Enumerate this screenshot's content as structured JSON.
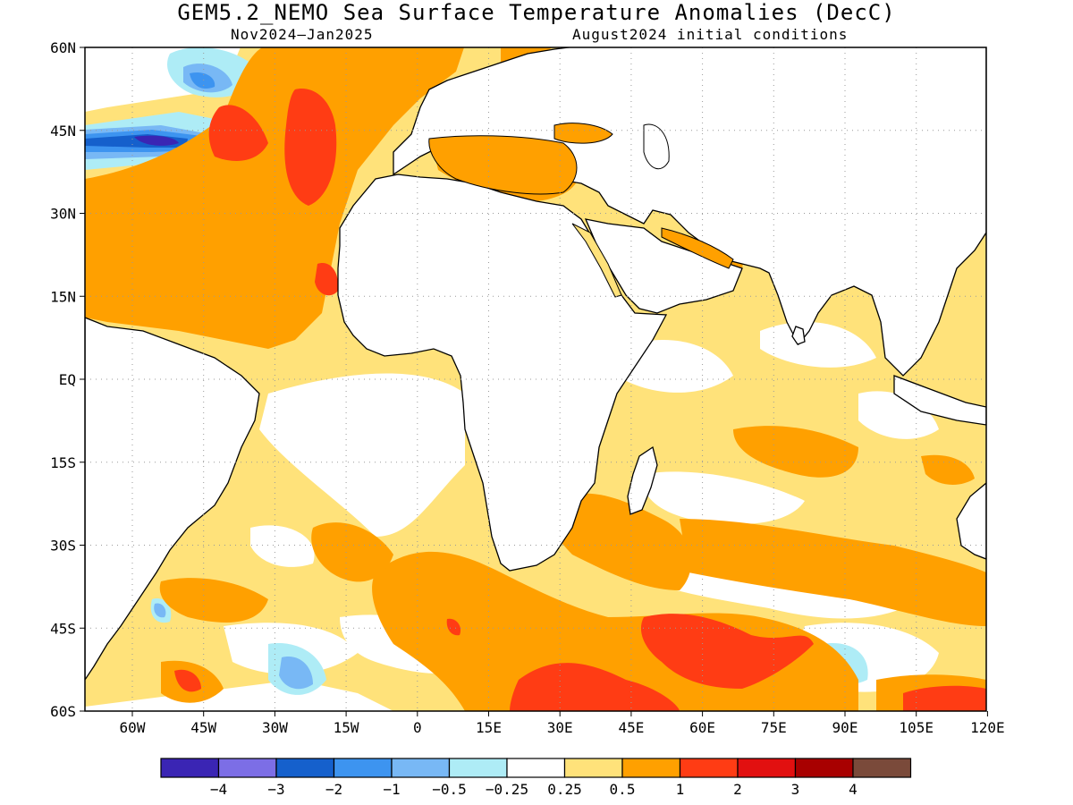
{
  "title": "GEM5.2_NEMO Sea Surface Temperature Anomalies (DecC)",
  "period": "Nov2024–Jan2025",
  "initial_conditions": "August2024 initial conditions",
  "lat_labels": [
    "60N",
    "45N",
    "30N",
    "15N",
    "EQ",
    "15S",
    "30S",
    "45S",
    "60S"
  ],
  "lon_labels": [
    "60W",
    "45W",
    "30W",
    "15W",
    "0",
    "15E",
    "30E",
    "45E",
    "60E",
    "75E",
    "90E",
    "105E",
    "120E"
  ],
  "colorbar": {
    "colors": [
      "#3a25b4",
      "#7c6ee6",
      "#1560cc",
      "#3d94f0",
      "#78b8f5",
      "#aeecf6",
      "#ffffff",
      "#ffe27a",
      "#ffa000",
      "#ff3c14",
      "#e21010",
      "#a80000",
      "#7a4a3a"
    ],
    "labels": [
      "−4",
      "−3",
      "−2",
      "−1",
      "−0.5",
      "−0.25",
      "0.25",
      "0.5",
      "1",
      "2",
      "3",
      "4"
    ]
  }
}
